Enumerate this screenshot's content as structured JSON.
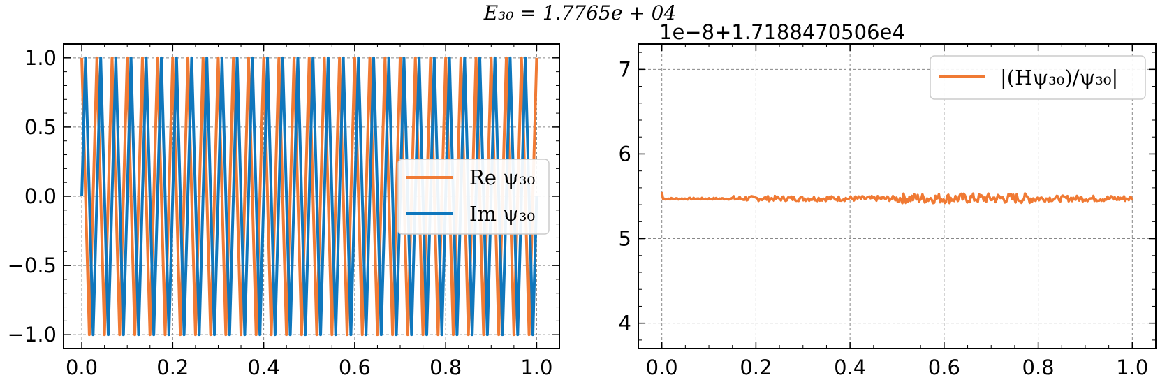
{
  "figure": {
    "title": "E₃₀ = 1.7765e + 04"
  },
  "colors": {
    "real": "#f07a34",
    "imag": "#0f77bd",
    "ratio": "#f07a34",
    "grid": "#888888"
  },
  "chart_data": [
    {
      "type": "line",
      "title": "",
      "xlabel": "",
      "ylabel": "",
      "xlim": [
        -0.04,
        1.05
      ],
      "ylim": [
        -1.1,
        1.1
      ],
      "x_ticks": [
        0.0,
        0.2,
        0.4,
        0.6,
        0.8,
        1.0
      ],
      "x_tick_labels": [
        "0.0",
        "0.2",
        "0.4",
        "0.6",
        "0.8",
        "1.0"
      ],
      "y_ticks": [
        -1.0,
        -0.5,
        0.0,
        0.5,
        1.0
      ],
      "y_tick_labels": [
        "−1.0",
        "−0.5",
        "0.0",
        "0.5",
        "1.0"
      ],
      "grid": true,
      "legend_position": "center-right",
      "series": [
        {
          "name": "Re ψ₃₀",
          "color": "#f07a34",
          "kind": "cos",
          "frequency": 30,
          "amplitude": 1.0
        },
        {
          "name": "Im ψ₃₀",
          "color": "#0f77bd",
          "kind": "sin",
          "frequency": 30,
          "amplitude": 1.0
        }
      ]
    },
    {
      "type": "line",
      "title": "",
      "offset_label": "1e−8+1.7188470506e4",
      "xlabel": "",
      "ylabel": "",
      "xlim": [
        -0.05,
        1.05
      ],
      "ylim": [
        3.7,
        7.3
      ],
      "x_ticks": [
        0.0,
        0.2,
        0.4,
        0.6,
        0.8,
        1.0
      ],
      "x_tick_labels": [
        "0.0",
        "0.2",
        "0.4",
        "0.6",
        "0.8",
        "1.0"
      ],
      "y_ticks": [
        4,
        5,
        6,
        7
      ],
      "y_tick_labels": [
        "4",
        "5",
        "6",
        "7"
      ],
      "grid": true,
      "legend_position": "top-right",
      "series": [
        {
          "name": "|(Hψ₃₀)/ψ₃₀|",
          "color": "#f07a34",
          "kind": "noisy-constant",
          "baseline": 5.47,
          "start_value": 5.55,
          "noise_max": 0.09
        }
      ]
    }
  ]
}
